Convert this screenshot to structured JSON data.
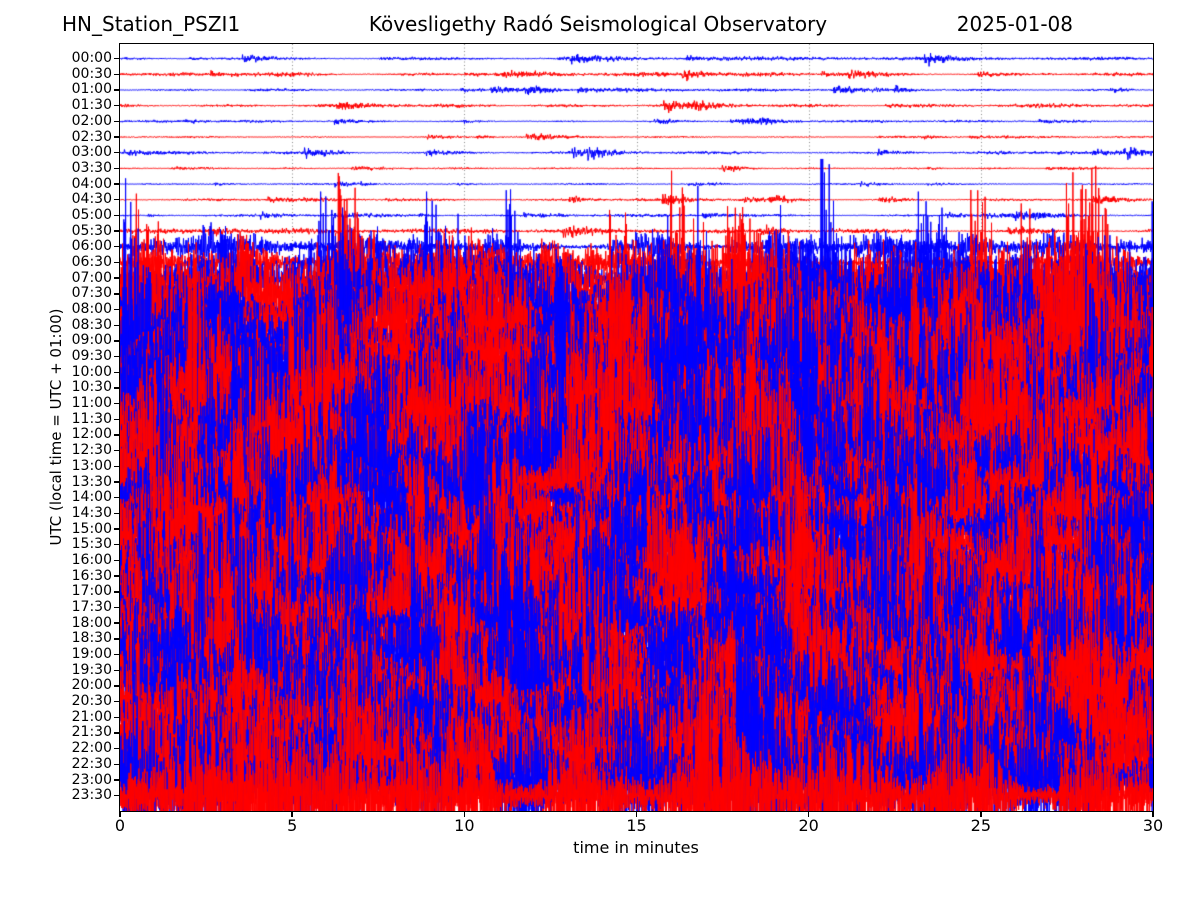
{
  "figure": {
    "title_left": "HN_Station_PSZI1",
    "title_center": "Kövesligethy Radó Seismological Observatory",
    "title_right": "2025-01-08"
  },
  "chart_data": {
    "type": "line",
    "subtype": "helicorder-dayplot",
    "title": "HN_Station_PSZI1 — Kövesligethy Radó Seismological Observatory — 2025-01-08",
    "xlabel": "time in minutes",
    "ylabel": "UTC (local time = UTC + 01:00)",
    "xlim": [
      0,
      30
    ],
    "x_ticks": [
      0,
      5,
      10,
      15,
      20,
      25,
      30
    ],
    "grid": "vertical dotted gridlines at 5-minute intervals",
    "grid_color": "#888888",
    "frame_color": "#000000",
    "minutes_per_row": 30,
    "row_count": 48,
    "trace_colors": {
      "even_rows": "#0000ff",
      "odd_rows": "#ff0000"
    },
    "rows": [
      {
        "utc": "00:00",
        "color": "#0000ff",
        "amp": 0.33
      },
      {
        "utc": "00:30",
        "color": "#ff0000",
        "amp": 0.38
      },
      {
        "utc": "01:00",
        "color": "#0000ff",
        "amp": 0.28
      },
      {
        "utc": "01:30",
        "color": "#ff0000",
        "amp": 0.35
      },
      {
        "utc": "02:00",
        "color": "#0000ff",
        "amp": 0.22
      },
      {
        "utc": "02:30",
        "color": "#ff0000",
        "amp": 0.18
      },
      {
        "utc": "03:00",
        "color": "#0000ff",
        "amp": 0.28
      },
      {
        "utc": "03:30",
        "color": "#ff0000",
        "amp": 0.2
      },
      {
        "utc": "04:00",
        "color": "#0000ff",
        "amp": 0.15
      },
      {
        "utc": "04:30",
        "color": "#ff0000",
        "amp": 0.26
      },
      {
        "utc": "05:00",
        "color": "#0000ff",
        "amp": 0.27
      },
      {
        "utc": "05:30",
        "color": "#ff0000",
        "amp": 0.44
      },
      {
        "utc": "06:00",
        "color": "#0000ff",
        "amp": 0.65
      },
      {
        "utc": "06:30",
        "color": "#ff0000",
        "amp": 0.95
      },
      {
        "utc": "07:00",
        "color": "#0000ff",
        "amp": 2.3
      },
      {
        "utc": "07:30",
        "color": "#ff0000",
        "amp": 3.4
      },
      {
        "utc": "08:00",
        "color": "#0000ff",
        "amp": 4.0
      },
      {
        "utc": "08:30",
        "color": "#ff0000",
        "amp": 4.3
      },
      {
        "utc": "09:00",
        "color": "#0000ff",
        "amp": 4.6
      },
      {
        "utc": "09:30",
        "color": "#ff0000",
        "amp": 4.2
      },
      {
        "utc": "10:00",
        "color": "#0000ff",
        "amp": 4.5
      },
      {
        "utc": "10:30",
        "color": "#ff0000",
        "amp": 4.1
      },
      {
        "utc": "11:00",
        "color": "#0000ff",
        "amp": 4.4
      },
      {
        "utc": "11:30",
        "color": "#ff0000",
        "amp": 4.7
      },
      {
        "utc": "12:00",
        "color": "#0000ff",
        "amp": 4.2
      },
      {
        "utc": "12:30",
        "color": "#ff0000",
        "amp": 4.0
      },
      {
        "utc": "13:00",
        "color": "#0000ff",
        "amp": 4.5
      },
      {
        "utc": "13:30",
        "color": "#ff0000",
        "amp": 4.3
      },
      {
        "utc": "14:00",
        "color": "#0000ff",
        "amp": 4.6
      },
      {
        "utc": "14:30",
        "color": "#ff0000",
        "amp": 4.1
      },
      {
        "utc": "15:00",
        "color": "#0000ff",
        "amp": 4.4
      },
      {
        "utc": "15:30",
        "color": "#ff0000",
        "amp": 4.2
      },
      {
        "utc": "16:00",
        "color": "#0000ff",
        "amp": 4.6
      },
      {
        "utc": "16:30",
        "color": "#ff0000",
        "amp": 4.3
      },
      {
        "utc": "17:00",
        "color": "#0000ff",
        "amp": 4.0
      },
      {
        "utc": "17:30",
        "color": "#ff0000",
        "amp": 4.5
      },
      {
        "utc": "18:00",
        "color": "#0000ff",
        "amp": 4.2
      },
      {
        "utc": "18:30",
        "color": "#ff0000",
        "amp": 4.4
      },
      {
        "utc": "19:00",
        "color": "#0000ff",
        "amp": 4.6
      },
      {
        "utc": "19:30",
        "color": "#ff0000",
        "amp": 4.1
      },
      {
        "utc": "20:00",
        "color": "#0000ff",
        "amp": 4.3
      },
      {
        "utc": "20:30",
        "color": "#ff0000",
        "amp": 4.5
      },
      {
        "utc": "21:00",
        "color": "#0000ff",
        "amp": 4.2
      },
      {
        "utc": "21:30",
        "color": "#ff0000",
        "amp": 4.4
      },
      {
        "utc": "22:00",
        "color": "#0000ff",
        "amp": 4.0
      },
      {
        "utc": "22:30",
        "color": "#ff0000",
        "amp": 4.3
      },
      {
        "utc": "23:00",
        "color": "#0000ff",
        "amp": 4.5
      },
      {
        "utc": "23:30",
        "color": "#ff0000",
        "amp": 4.2
      }
    ]
  }
}
